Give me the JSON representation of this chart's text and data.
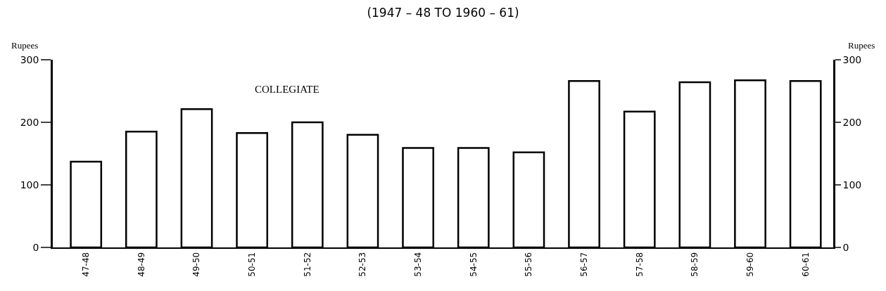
{
  "chart_data": {
    "type": "bar",
    "title": "(1947 – 48 TO 1960 – 61)",
    "ylabel": "Rupees",
    "y2label": "Rupees",
    "annotations": [
      "COLLEGIATE"
    ],
    "categories": [
      "47-48",
      "48-49",
      "49-50",
      "50-51",
      "51-52",
      "52-53",
      "53-54",
      "54-55",
      "55-56",
      "56-57",
      "57-58",
      "58-59",
      "59-60",
      "60-61"
    ],
    "values": [
      137,
      185,
      221,
      183,
      200,
      180,
      159,
      159,
      152,
      266,
      217,
      264,
      267,
      266
    ],
    "color": "#ffffff",
    "ylim": [
      0,
      300
    ],
    "yticks": [
      0,
      100,
      200,
      300
    ],
    "y2lim": [
      0,
      300
    ],
    "y2ticks": [
      0,
      100,
      200,
      300
    ],
    "legend": false
  }
}
